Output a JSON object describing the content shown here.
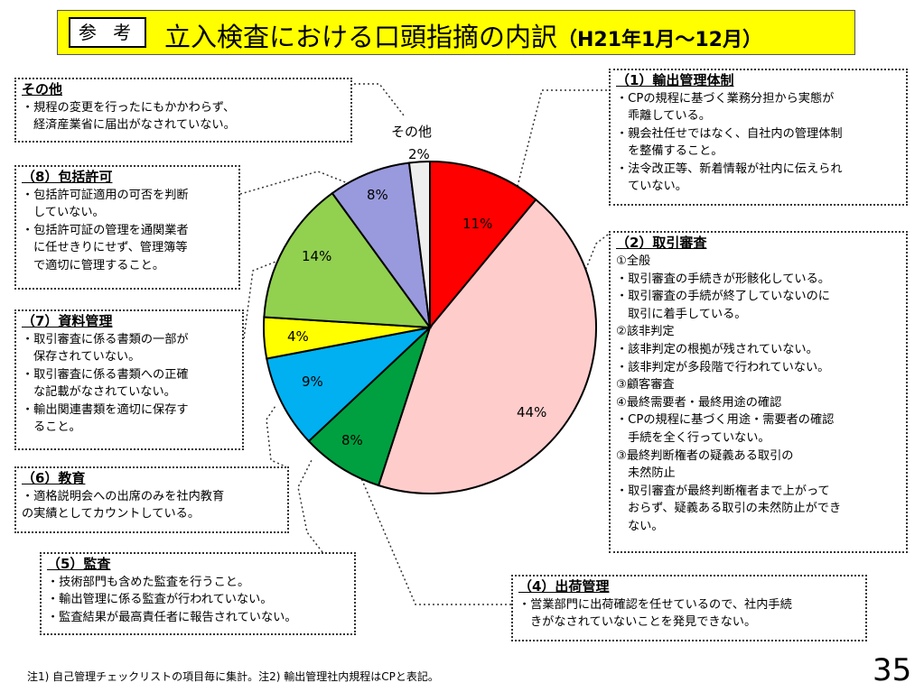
{
  "title": {
    "badge": "参 考",
    "main": "立入検査における口頭指摘の内訳",
    "sub": "（H21年1月～12月）"
  },
  "chart_data": {
    "type": "pie",
    "start_angle_deg": 0,
    "direction": "clockwise",
    "slices": [
      {
        "label": "(1)輸出管理体制",
        "value": 11,
        "display": "11%",
        "color": "#ff0000"
      },
      {
        "label": "(2)取引審査",
        "value": 44,
        "display": "44%",
        "color": "#ffcccc"
      },
      {
        "label": "(4)出荷管理",
        "value": 8,
        "display": "8%",
        "color": "#00a040"
      },
      {
        "label": "(5)監査",
        "value": 9,
        "display": "9%",
        "color": "#00b0f0"
      },
      {
        "label": "(6)教育",
        "value": 4,
        "display": "4%",
        "color": "#ffff00"
      },
      {
        "label": "(7)資料管理",
        "value": 14,
        "display": "14%",
        "color": "#92d050"
      },
      {
        "label": "(8)包括許可",
        "value": 8,
        "display": "8%",
        "color": "#9999dd"
      },
      {
        "label": "その他",
        "value": 2,
        "display": "2%",
        "color": "#eeeeee"
      }
    ],
    "other_label": "その他"
  },
  "boxes": {
    "sonota": {
      "heading": "その他",
      "lines": [
        "・規程の変更を行ったにもかかわらず、",
        "経済産業省に届出がなされていない。"
      ]
    },
    "b8": {
      "heading": "（8）包括許可",
      "lines": [
        "・包括許可証適用の可否を判断",
        "していない。",
        "・包括許可証の管理を通関業者",
        "に任せきりにせず、管理簿等",
        "で適切に管理すること。"
      ]
    },
    "b7": {
      "heading": "（7）資料管理",
      "lines": [
        "・取引審査に係る書類の一部が",
        "保存されていない。",
        "・取引審査に係る書類への正確",
        "な記載がなされていない。",
        "・輸出関連書類を適切に保存す",
        "ること。"
      ]
    },
    "b6": {
      "heading": "（6）教育",
      "lines": [
        "・適格説明会への出席のみを社内教育",
        "の実績としてカウントしている。"
      ]
    },
    "b5": {
      "heading": "（5）監査",
      "lines": [
        "・技術部門も含めた監査を行うこと。",
        "・輸出管理に係る監査が行われていない。",
        "・監査結果が最高責任者に報告されていない。"
      ]
    },
    "b1": {
      "heading": "（1）輸出管理体制",
      "lines": [
        "・CPの規程に基づく業務分担から実態が",
        "乖離している。",
        "・親会社任せではなく、自社内の管理体制",
        "を整備すること。",
        "・法令改正等、新着情報が社内に伝えられ",
        "ていない。"
      ]
    },
    "b2": {
      "heading": "（2）取引審査",
      "lines": [
        "①全般",
        "・取引審査の手続きが形骸化している。",
        "・取引審査の手続が終了していないのに",
        "取引に着手している。",
        "②該非判定",
        "・該非判定の根拠が残されていない。",
        "・該非判定が多段階で行われていない。",
        "③顧客審査",
        "④最終需要者・最終用途の確認",
        "・CPの規程に基づく用途・需要者の確認",
        "手続を全く行っていない。",
        "③最終判断権者の疑義ある取引の",
        "未然防止",
        "・取引審査が最終判断権者まで上がって",
        "おらず、疑義ある取引の未然防止ができ",
        "ない。"
      ]
    },
    "b4": {
      "heading": "（4）出荷管理",
      "lines": [
        "・営業部門に出荷確認を任せているので、社内手続",
        "きがなされていないことを発見できない。"
      ]
    }
  },
  "footnote": "注1) 自己管理チェックリストの項目毎に集計。注2) 輸出管理社内規程はCPと表記。",
  "page_number": "35"
}
